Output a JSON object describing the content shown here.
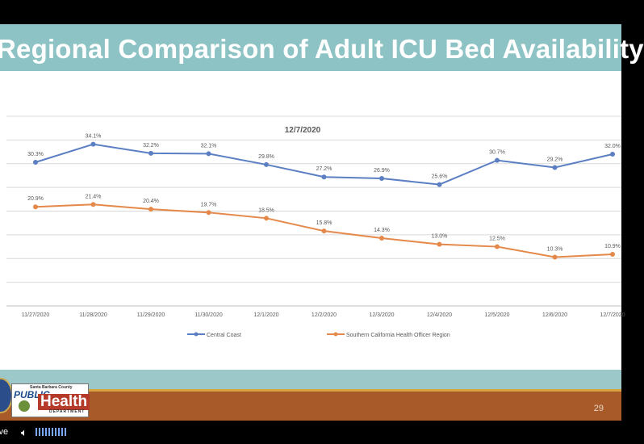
{
  "slide": {
    "title": "Regional Comparison of Adult ICU Bed Availability",
    "page_number": "29"
  },
  "logo": {
    "small_text": "Santa Barbara County",
    "public": "PUBLIC",
    "health": "Health",
    "department": "DEPARTMENT"
  },
  "player": {
    "live_label": "ive",
    "speaker_icon": "speaker-icon"
  },
  "colors": {
    "central": "#5b7fc2",
    "socal": "#e4894a",
    "title_band": "#8ec3c5",
    "footer_brown": "#a85a28"
  },
  "chart_data": {
    "type": "line",
    "title": "12/7/2020",
    "categories": [
      "11/27/2020",
      "11/28/2020",
      "11/29/2020",
      "11/30/2020",
      "12/1/2020",
      "12/2/2020",
      "12/3/2020",
      "12/4/2020",
      "12/5/2020",
      "12/6/2020",
      "12/7/2020"
    ],
    "ylim": [
      0,
      40
    ],
    "grid": true,
    "legend_position": "bottom",
    "series": [
      {
        "name": "Central Coast",
        "values": [
          30.3,
          34.1,
          32.2,
          32.1,
          29.8,
          27.2,
          26.9,
          25.6,
          30.7,
          29.2,
          32.0
        ],
        "labels": [
          "30.3%",
          "34.1%",
          "32.2%",
          "32.1%",
          "29.8%",
          "27.2%",
          "26.9%",
          "25.6%",
          "30.7%",
          "29.2%",
          "32.0%"
        ]
      },
      {
        "name": "Southern California Health Officer Region",
        "values": [
          20.9,
          21.4,
          20.4,
          19.7,
          18.5,
          15.8,
          14.3,
          13.0,
          12.5,
          10.3,
          10.9
        ],
        "labels": [
          "20.9%",
          "21.4%",
          "20.4%",
          "19.7%",
          "18.5%",
          "15.8%",
          "14.3%",
          "13.0%",
          "12.5%",
          "10.3%",
          "10.9%"
        ]
      }
    ]
  }
}
